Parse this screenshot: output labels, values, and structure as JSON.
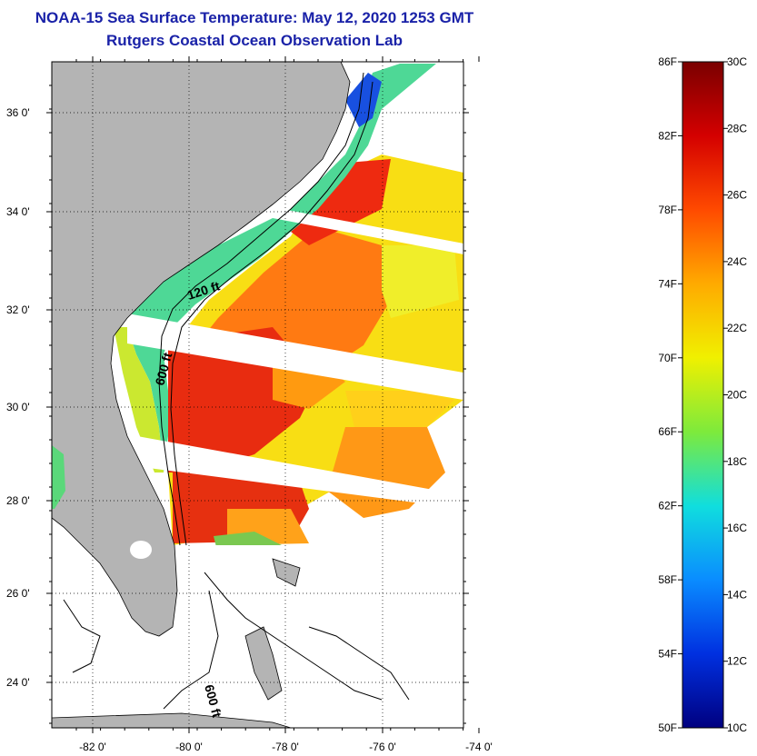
{
  "title": "NOAA-15 Sea Surface Temperature:  May 12, 2020 1253 GMT",
  "subtitle": "Rutgers Coastal Ocean Observation Lab",
  "map": {
    "lat_ticks": [
      "36 0'",
      "34 0'",
      "32 0'",
      "30 0'",
      "28 0'",
      "26 0'",
      "24 0'"
    ],
    "lon_ticks": [
      "-82 0'",
      "-80 0'",
      "-78 0'",
      "-76 0'",
      "-74 0'"
    ],
    "contour_labels": [
      "120 ft",
      "600 ft",
      "600 ft"
    ],
    "land_color": "#b4b4b4"
  },
  "colorbar": {
    "fahrenheit_labels": [
      "86F",
      "82F",
      "78F",
      "74F",
      "70F",
      "66F",
      "62F",
      "58F",
      "54F",
      "50F"
    ],
    "celsius_labels": [
      "30C",
      "28C",
      "26C",
      "24C",
      "22C",
      "20C",
      "18C",
      "16C",
      "14C",
      "12C",
      "10C"
    ],
    "colors_top_to_bottom": [
      "#7a0000",
      "#d40000",
      "#ff4a00",
      "#ffaa00",
      "#f0f000",
      "#7dea3c",
      "#10dede",
      "#0a8cff",
      "#0030e0",
      "#000080"
    ]
  }
}
